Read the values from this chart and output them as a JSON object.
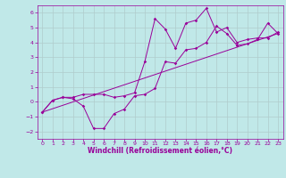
{
  "xlabel": "Windchill (Refroidissement éolien,°C)",
  "bg_color": "#c0e8e8",
  "grid_color": "#b0cccc",
  "line_color": "#990099",
  "xlim": [
    -0.5,
    23.5
  ],
  "ylim": [
    -2.5,
    6.5
  ],
  "xticks": [
    0,
    1,
    2,
    3,
    4,
    5,
    6,
    7,
    8,
    9,
    10,
    11,
    12,
    13,
    14,
    15,
    16,
    17,
    18,
    19,
    20,
    21,
    22,
    23
  ],
  "yticks": [
    -2,
    -1,
    0,
    1,
    2,
    3,
    4,
    5,
    6
  ],
  "series1_x": [
    0,
    1,
    2,
    3,
    4,
    5,
    6,
    7,
    8,
    9,
    10,
    11,
    12,
    13,
    14,
    15,
    16,
    17,
    18,
    19,
    20,
    21,
    22,
    23
  ],
  "series1_y": [
    -0.7,
    0.1,
    0.3,
    0.2,
    -0.3,
    -1.8,
    -1.8,
    -0.8,
    -0.5,
    0.4,
    0.5,
    0.9,
    2.7,
    2.6,
    3.5,
    3.6,
    4.0,
    5.1,
    4.6,
    3.8,
    3.9,
    4.2,
    5.3,
    4.6
  ],
  "series2_x": [
    0,
    1,
    2,
    3,
    4,
    5,
    6,
    7,
    8,
    9,
    10,
    11,
    12,
    13,
    14,
    15,
    16,
    17,
    18,
    19,
    20,
    21,
    22,
    23
  ],
  "series2_y": [
    -0.7,
    0.1,
    0.3,
    0.3,
    0.5,
    0.5,
    0.5,
    0.3,
    0.4,
    0.6,
    2.7,
    5.6,
    4.9,
    3.6,
    5.3,
    5.5,
    6.3,
    4.7,
    5.0,
    4.0,
    4.2,
    4.3,
    4.3,
    4.7
  ],
  "regline_x": [
    0,
    23
  ],
  "regline_y": [
    -0.7,
    4.6
  ],
  "xlabel_fontsize": 5.5,
  "tick_fontsize": 4.5,
  "lw": 0.7,
  "ms": 1.8
}
